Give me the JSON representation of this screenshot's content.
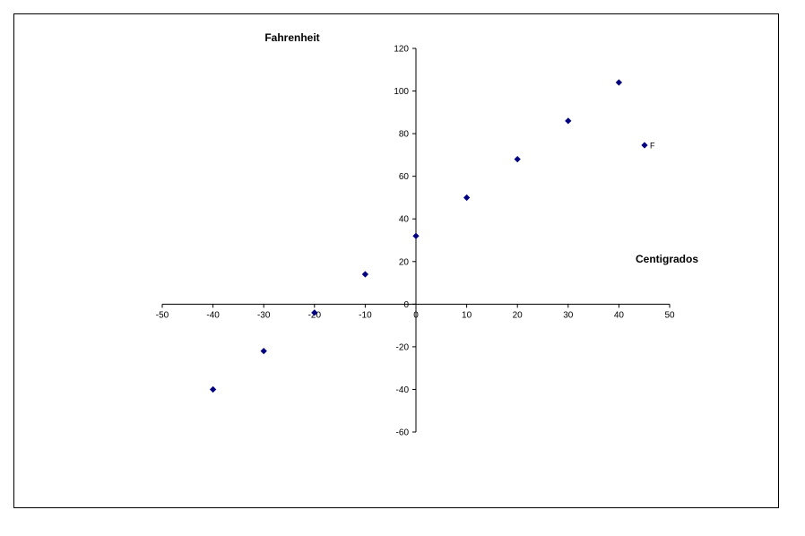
{
  "chart_data": {
    "type": "scatter",
    "title": "",
    "xlabel": "Centigrados",
    "ylabel": "Fahrenheit",
    "xlim": [
      -50,
      50
    ],
    "ylim": [
      -60,
      120
    ],
    "xticks": [
      -50,
      -40,
      -30,
      -20,
      -10,
      0,
      10,
      20,
      30,
      40,
      50
    ],
    "yticks": [
      -60,
      -40,
      -20,
      0,
      20,
      40,
      60,
      80,
      100,
      120
    ],
    "grid": false,
    "legend": {
      "placement": "right",
      "label": "F"
    },
    "series": [
      {
        "name": "F",
        "color": "#000080",
        "marker": "diamond",
        "x": [
          -40,
          -30,
          -20,
          -10,
          0,
          10,
          20,
          30,
          40
        ],
        "y": [
          -40,
          -22,
          -4,
          14,
          32,
          50,
          68,
          86,
          104
        ]
      }
    ]
  }
}
